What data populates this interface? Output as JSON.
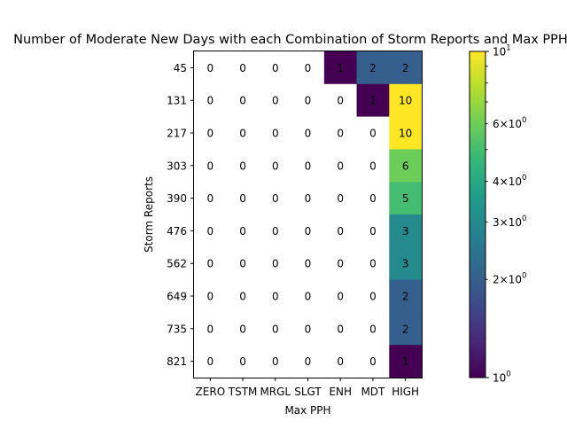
{
  "chart_data": {
    "type": "heatmap",
    "title": "Number of Moderate New Days with each Combination of Storm Reports and Max PPH",
    "xlabel": "Max PPH",
    "ylabel": "Storm Reports",
    "x_categories": [
      "ZERO",
      "TSTM",
      "MRGL",
      "SLGT",
      "ENH",
      "MDT",
      "HIGH"
    ],
    "y_categories": [
      "45",
      "131",
      "217",
      "303",
      "390",
      "476",
      "562",
      "649",
      "735",
      "821"
    ],
    "values": [
      [
        0,
        0,
        0,
        0,
        1,
        2,
        2
      ],
      [
        0,
        0,
        0,
        0,
        0,
        1,
        10
      ],
      [
        0,
        0,
        0,
        0,
        0,
        0,
        10
      ],
      [
        0,
        0,
        0,
        0,
        0,
        0,
        6
      ],
      [
        0,
        0,
        0,
        0,
        0,
        0,
        5
      ],
      [
        0,
        0,
        0,
        0,
        0,
        0,
        3
      ],
      [
        0,
        0,
        0,
        0,
        0,
        0,
        3
      ],
      [
        0,
        0,
        0,
        0,
        0,
        0,
        2
      ],
      [
        0,
        0,
        0,
        0,
        0,
        0,
        2
      ],
      [
        0,
        0,
        0,
        0,
        0,
        0,
        1
      ]
    ],
    "color_scale": "log",
    "colormap": "viridis",
    "zero_color": "#ffffff",
    "colorbar": {
      "range": [
        1,
        10
      ],
      "major_ticks": [
        1,
        10
      ],
      "major_labels": [
        "10^0",
        "10^1"
      ],
      "minor_ticks": [
        2,
        3,
        4,
        6
      ],
      "minor_labels": [
        "2×10^0",
        "3×10^0",
        "4×10^0",
        "6×10^0"
      ]
    }
  }
}
